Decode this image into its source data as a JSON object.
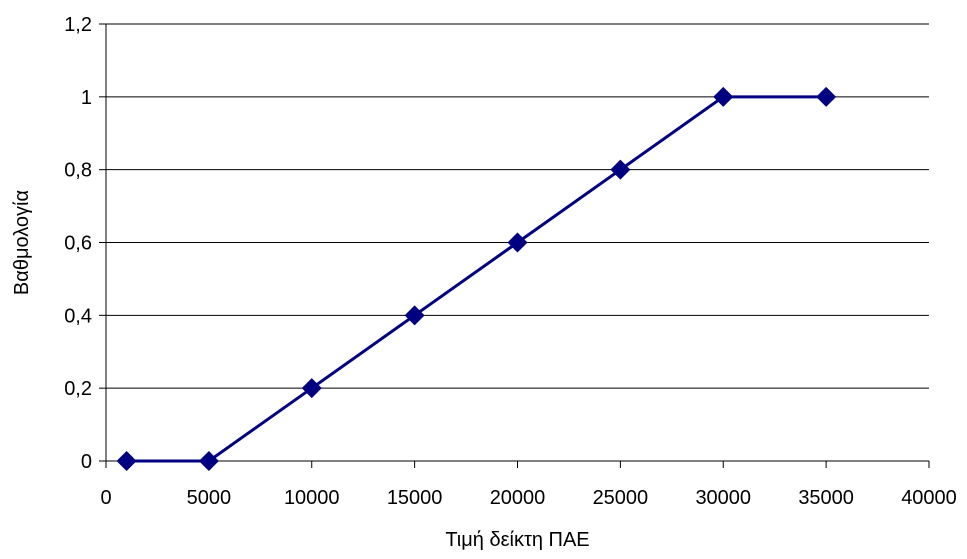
{
  "chart_data": {
    "type": "line",
    "xlabel": "Τιμή δείκτη ΠΑΕ",
    "ylabel": "Βαθμολογία",
    "xlim": [
      0,
      40000
    ],
    "ylim": [
      0,
      1.2
    ],
    "x_ticks": [
      0,
      5000,
      10000,
      15000,
      20000,
      25000,
      30000,
      35000,
      40000
    ],
    "x_tick_labels": [
      "0",
      "5000",
      "10000",
      "15000",
      "20000",
      "25000",
      "30000",
      "35000",
      "40000"
    ],
    "y_ticks": [
      0,
      0.2,
      0.4,
      0.6,
      0.8,
      1,
      1.2
    ],
    "y_tick_labels": [
      "0",
      "0,2",
      "0,4",
      "0,6",
      "0,8",
      "1",
      "1,2"
    ],
    "grid": "horizontal",
    "marker": "diamond",
    "series": [
      {
        "color": "#000080",
        "x": [
          1000,
          5000,
          10000,
          15000,
          20000,
          25000,
          30000,
          35000
        ],
        "y": [
          0,
          0,
          0.2,
          0.4,
          0.6,
          0.8,
          1,
          1
        ]
      }
    ]
  }
}
